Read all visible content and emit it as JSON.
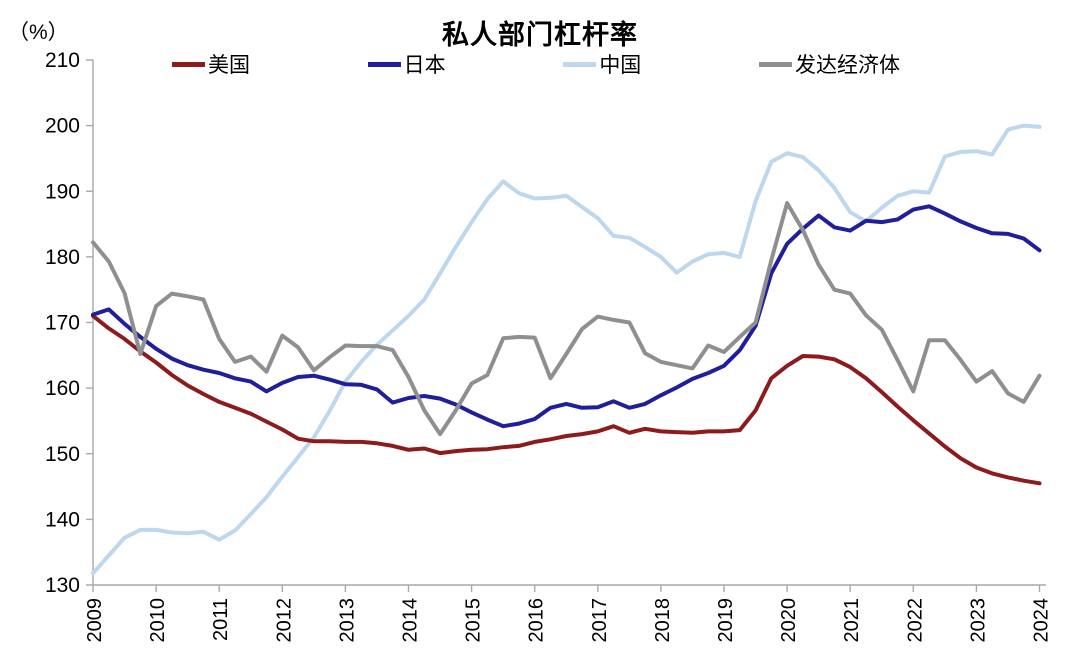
{
  "title": "私人部门杠杆率",
  "unit_label": "（%）",
  "chart_data": {
    "type": "line",
    "title": "私人部门杠杆率",
    "ylabel": "（%）",
    "x_frequency": "quarterly",
    "x_tick_years": [
      2009,
      2010,
      2011,
      2012,
      2013,
      2014,
      2015,
      2016,
      2017,
      2018,
      2019,
      2020,
      2021,
      2022,
      2023,
      2024
    ],
    "y_ticks": [
      210,
      200,
      190,
      180,
      170,
      160,
      150,
      140,
      130
    ],
    "ylim": [
      130,
      210
    ],
    "grid": false,
    "legend_position": "top",
    "series": [
      {
        "key": "us",
        "name": "美国",
        "color": "#8E1B1B",
        "values": [
          171.0,
          169.1,
          167.5,
          165.6,
          163.9,
          162.0,
          160.4,
          159.1,
          157.9,
          157.0,
          156.1,
          154.9,
          153.7,
          152.3,
          151.9,
          151.9,
          151.8,
          151.8,
          151.6,
          151.2,
          150.6,
          150.8,
          150.1,
          150.4,
          150.6,
          150.7,
          151.0,
          151.2,
          151.8,
          152.2,
          152.7,
          153.0,
          153.4,
          154.2,
          153.2,
          153.8,
          153.4,
          153.3,
          153.2,
          153.4,
          153.4,
          153.6,
          156.6,
          161.5,
          163.4,
          164.9,
          164.8,
          164.4,
          163.2,
          161.5,
          159.4,
          157.2,
          155.1,
          153.1,
          151.1,
          149.3,
          147.9,
          147.0,
          146.4,
          145.9,
          145.5
        ]
      },
      {
        "key": "japan",
        "name": "日本",
        "color": "#1F1F9C",
        "values": [
          171.2,
          172.0,
          169.8,
          167.8,
          166.0,
          164.5,
          163.5,
          162.8,
          162.3,
          161.5,
          161.0,
          159.5,
          160.8,
          161.7,
          161.9,
          161.3,
          160.6,
          160.5,
          159.8,
          157.8,
          158.5,
          158.8,
          158.4,
          157.5,
          156.3,
          155.2,
          154.2,
          154.6,
          155.3,
          157.0,
          157.6,
          157.0,
          157.1,
          158.0,
          157.0,
          157.6,
          158.9,
          160.1,
          161.4,
          162.3,
          163.4,
          165.8,
          169.5,
          177.5,
          182.0,
          184.3,
          186.3,
          184.5,
          184.0,
          185.5,
          185.3,
          185.7,
          187.2,
          187.7,
          186.6,
          185.4,
          184.4,
          183.6,
          183.5,
          182.8,
          181.0
        ]
      },
      {
        "key": "china",
        "name": "中国",
        "color": "#BDD7EE",
        "values": [
          131.8,
          134.5,
          137.2,
          138.4,
          138.4,
          138.0,
          137.9,
          138.1,
          136.9,
          138.3,
          140.8,
          143.4,
          146.5,
          149.5,
          152.5,
          156.5,
          161.0,
          164.0,
          166.6,
          168.8,
          171.0,
          173.5,
          177.5,
          181.5,
          185.3,
          188.8,
          191.5,
          189.7,
          188.9,
          189.0,
          189.3,
          187.6,
          185.9,
          183.2,
          182.9,
          181.5,
          180.0,
          177.6,
          179.3,
          180.4,
          180.6,
          180.0,
          188.5,
          194.5,
          195.8,
          195.2,
          193.2,
          190.5,
          186.8,
          185.4,
          187.5,
          189.3,
          190.0,
          189.8,
          195.3,
          196.0,
          196.1,
          195.6,
          199.4,
          200.0,
          199.8
        ]
      },
      {
        "key": "dm",
        "name": "发达经济体",
        "color": "#8F8F8F",
        "values": [
          182.2,
          179.3,
          174.5,
          165.2,
          172.5,
          174.4,
          174.0,
          173.5,
          167.5,
          164.0,
          164.8,
          162.5,
          168.0,
          166.2,
          162.7,
          164.7,
          166.5,
          166.4,
          166.4,
          165.8,
          161.7,
          156.6,
          153.0,
          156.6,
          160.7,
          162.0,
          167.6,
          167.8,
          167.7,
          161.5,
          165.2,
          169.0,
          170.9,
          170.4,
          170.0,
          165.3,
          164.0,
          163.5,
          163.0,
          166.5,
          165.5,
          167.8,
          170.0,
          179.5,
          188.2,
          184.1,
          178.8,
          175.0,
          174.4,
          171.1,
          168.9,
          164.3,
          159.5,
          167.3,
          167.3,
          164.3,
          161.0,
          162.6,
          159.2,
          157.9,
          161.9
        ]
      }
    ]
  }
}
